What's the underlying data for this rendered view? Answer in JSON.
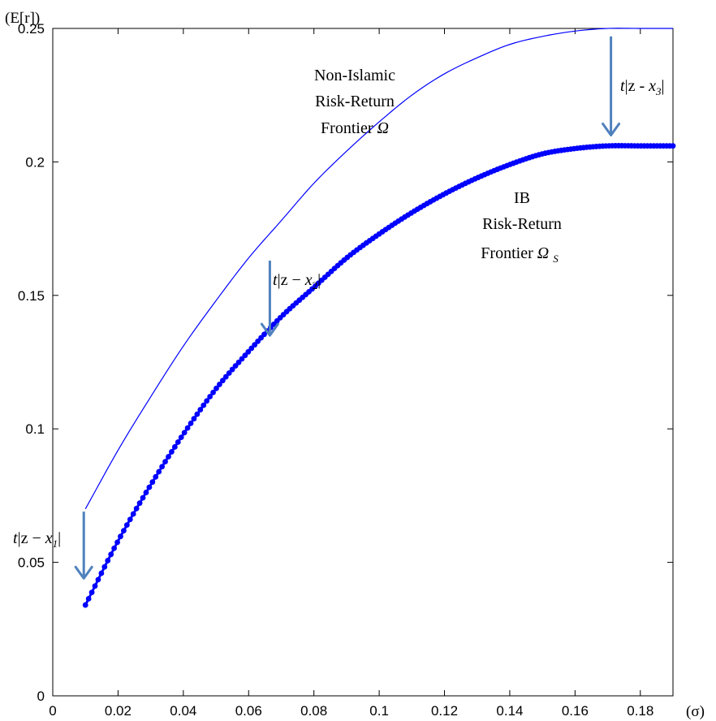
{
  "chart_data": {
    "type": "line",
    "title": "",
    "ylabel": "(E[r])",
    "xlabel": "(σ)",
    "xlim": [
      0,
      0.19
    ],
    "ylim": [
      0,
      0.25
    ],
    "xticks": [
      "0",
      "0.02",
      "0.04",
      "0.06",
      "0.08",
      "0.1",
      "0.12",
      "0.14",
      "0.16",
      "0.18"
    ],
    "xtick_values": [
      0,
      0.02,
      0.04,
      0.06,
      0.08,
      0.1,
      0.12,
      0.14,
      0.16,
      0.18
    ],
    "yticks": [
      "0",
      "0.05",
      "0.1",
      "0.15",
      "0.2",
      "0.25"
    ],
    "ytick_values": [
      0,
      0.05,
      0.1,
      0.15,
      0.2,
      0.25
    ],
    "grid": false,
    "series": [
      {
        "name": "Non-Islamic Risk-Return Frontier Ω",
        "style": "thin-line",
        "color": "#0000ff",
        "x": [
          0.01,
          0.02,
          0.03,
          0.04,
          0.05,
          0.06,
          0.07,
          0.08,
          0.09,
          0.1,
          0.11,
          0.12,
          0.13,
          0.14,
          0.15,
          0.16,
          0.17,
          0.18,
          0.19
        ],
        "y": [
          0.07,
          0.092,
          0.112,
          0.131,
          0.148,
          0.164,
          0.178,
          0.192,
          0.204,
          0.215,
          0.225,
          0.233,
          0.239,
          0.244,
          0.247,
          0.249,
          0.25,
          0.25,
          0.25
        ]
      },
      {
        "name": "IB Risk-Return Frontier ΩS",
        "style": "dotted-thick",
        "color": "#0000ff",
        "x": [
          0.01,
          0.02,
          0.03,
          0.04,
          0.05,
          0.06,
          0.07,
          0.08,
          0.09,
          0.1,
          0.11,
          0.12,
          0.13,
          0.14,
          0.15,
          0.16,
          0.17,
          0.18,
          0.19
        ],
        "y": [
          0.034,
          0.058,
          0.079,
          0.098,
          0.115,
          0.129,
          0.142,
          0.153,
          0.164,
          0.173,
          0.181,
          0.188,
          0.194,
          0.199,
          0.203,
          0.205,
          0.206,
          0.206,
          0.206
        ]
      }
    ],
    "annotations": [
      {
        "id": "non-islamic",
        "lines": [
          "Non-Islamic",
          "Risk-Return",
          "Frontier"
        ],
        "symbol": "Ω",
        "sub": ""
      },
      {
        "id": "ib",
        "lines": [
          "IB",
          "Risk-Return",
          "Frontier"
        ],
        "symbol": "Ω",
        "sub": "S"
      },
      {
        "id": "gap1",
        "t": "t",
        "mid": "|z − ",
        "x": "x",
        "sub": "1",
        "end": "|"
      },
      {
        "id": "gap2",
        "t": "t",
        "mid": "|z − ",
        "x": "x",
        "sub": "2",
        "end": "|"
      },
      {
        "id": "gap3",
        "t": "t",
        "mid": "|z - ",
        "x": "x",
        "sub": "3",
        "end": "|"
      }
    ],
    "arrows": [
      {
        "name": "arrow-x1",
        "x": 0.0095,
        "y_from": 0.069,
        "y_to": 0.044
      },
      {
        "name": "arrow-x2",
        "x": 0.0665,
        "y_from": 0.163,
        "y_to": 0.135
      },
      {
        "name": "arrow-x3",
        "x": 0.171,
        "y_from": 0.247,
        "y_to": 0.21
      }
    ],
    "colors": {
      "line": "#0000ff",
      "arrow": "#4f81bd",
      "axis": "#000000"
    }
  }
}
